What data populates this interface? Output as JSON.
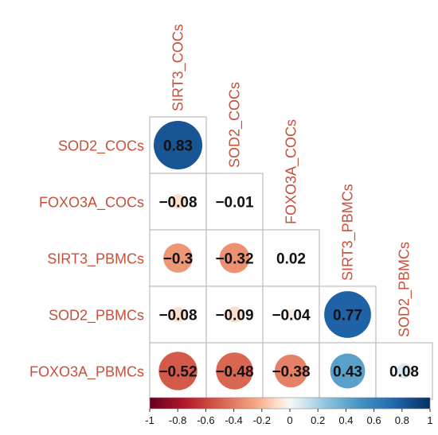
{
  "chart_data": {
    "type": "heatmap",
    "layout": "lower-triangle correlation plot (corrplot style), circle size and color encode correlation",
    "columns": [
      "SIRT3_COCs",
      "SOD2_COCs",
      "FOXO3A_COCs",
      "SIRT3_PBMCs",
      "SOD2_PBMCs"
    ],
    "rows": [
      "SOD2_COCs",
      "FOXO3A_COCs",
      "SIRT3_PBMCs",
      "SOD2_PBMCs",
      "FOXO3A_PBMCs"
    ],
    "matrix": [
      [
        {
          "value": 0.83,
          "label": "0.83"
        }
      ],
      [
        {
          "value": -0.08,
          "label": "−0.08"
        },
        {
          "value": -0.01,
          "label": "−0.01"
        }
      ],
      [
        {
          "value": -0.3,
          "label": "−0.3"
        },
        {
          "value": -0.32,
          "label": "−0.32"
        },
        {
          "value": 0.02,
          "label": "0.02"
        }
      ],
      [
        {
          "value": -0.08,
          "label": "−0.08"
        },
        {
          "value": -0.09,
          "label": "−0.09"
        },
        {
          "value": -0.04,
          "label": "−0.04"
        },
        {
          "value": 0.77,
          "label": "0.77"
        }
      ],
      [
        {
          "value": -0.52,
          "label": "−0.52"
        },
        {
          "value": -0.48,
          "label": "−0.48"
        },
        {
          "value": -0.38,
          "label": "−0.38"
        },
        {
          "value": 0.43,
          "label": "0.43"
        },
        {
          "value": 0.08,
          "label": "0.08"
        }
      ]
    ],
    "colorbar": {
      "range": [
        -1,
        1
      ],
      "ticks": [
        "-1",
        "-0.8",
        "-0.6",
        "-0.4",
        "-0.2",
        "0",
        "0.2",
        "0.4",
        "0.6",
        "0.8",
        "1"
      ],
      "placement": "bottom"
    },
    "colors": {
      "negative_end": "#67001f",
      "negative_mid": "#d6604d",
      "negative_light": "#fddbc7",
      "neutral": "#f7f7f7",
      "positive_light": "#d1e5f0",
      "positive_mid": "#4393c3",
      "positive_end": "#053061",
      "label_text": "#c8503a",
      "grid": "#bdbdbd"
    }
  }
}
